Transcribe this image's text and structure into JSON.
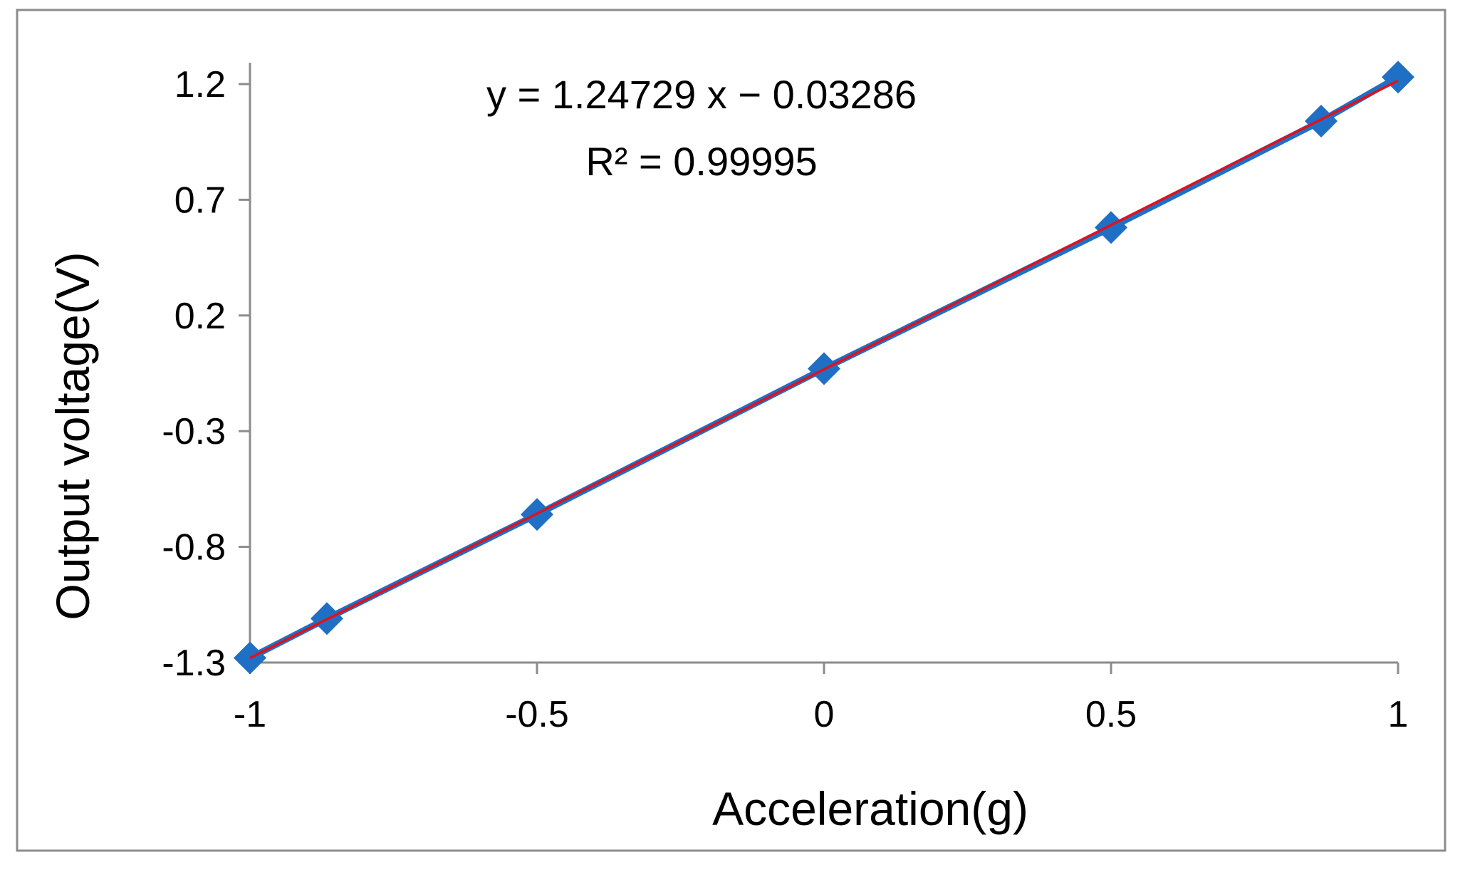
{
  "chart_data": {
    "type": "scatter",
    "xlabel": "Acceleration(g)",
    "ylabel": "Output voltage(V)",
    "xlim": [
      -1,
      1
    ],
    "ylim": [
      -1.3,
      1.2
    ],
    "x_ticks": [
      -1,
      -0.5,
      0,
      0.5,
      1
    ],
    "y_ticks": [
      -1.3,
      -0.8,
      -0.3,
      0.2,
      0.7,
      1.2
    ],
    "x_tick_labels": [
      "-1",
      "-0.5",
      "0",
      "0.5",
      "1"
    ],
    "y_tick_labels": [
      "-1.3",
      "-0.8",
      "-0.3",
      "0.2",
      "0.7",
      "1.2"
    ],
    "grid": false,
    "legend": "none",
    "series": [
      {
        "marker": "diamond",
        "color": "#1f6fc4",
        "connected": true,
        "x": [
          -1,
          -0.866,
          -0.5,
          0,
          0.5,
          0.866,
          1
        ],
        "y": [
          -1.28,
          -1.11,
          -0.66,
          -0.03,
          0.58,
          1.04,
          1.23
        ]
      }
    ],
    "trendline": {
      "color": "#e3101c",
      "slope": 1.24729,
      "intercept": -0.03286,
      "equation_label": "y = 1.24729 x − 0.03286",
      "r2_label": "R² = 0.99995"
    }
  }
}
